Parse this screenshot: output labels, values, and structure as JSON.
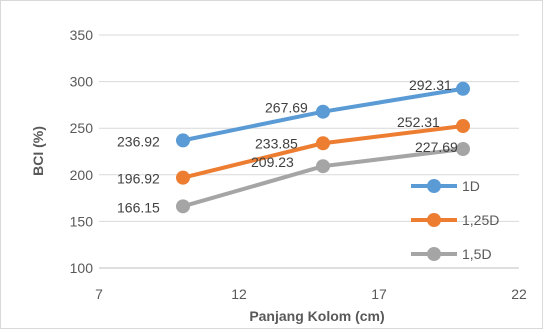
{
  "chart_data": {
    "type": "line",
    "xlabel": "Panjang Kolom (cm)",
    "ylabel": "BCI (%)",
    "xlim": [
      7,
      22
    ],
    "ylim": [
      100,
      350
    ],
    "xticks": [
      7,
      12,
      17,
      22
    ],
    "yticks": [
      100,
      150,
      200,
      250,
      300,
      350
    ],
    "grid": "horizontal",
    "legend_position": "right",
    "series": [
      {
        "name": "1D",
        "color": "#5b9bd5",
        "x": [
          10,
          15,
          20
        ],
        "y": [
          236.92,
          267.69,
          292.31
        ],
        "labels": [
          "236.92",
          "267.69",
          "292.31"
        ]
      },
      {
        "name": "1,25D",
        "color": "#ed7d31",
        "x": [
          10,
          15,
          20
        ],
        "y": [
          196.92,
          233.85,
          252.31
        ],
        "labels": [
          "196.92",
          "233.85",
          "252.31"
        ]
      },
      {
        "name": "1,5D",
        "color": "#a5a5a5",
        "x": [
          10,
          15,
          20
        ],
        "y": [
          166.15,
          209.23,
          227.69
        ],
        "labels": [
          "166.15",
          "209.23",
          "227.69"
        ]
      }
    ]
  }
}
